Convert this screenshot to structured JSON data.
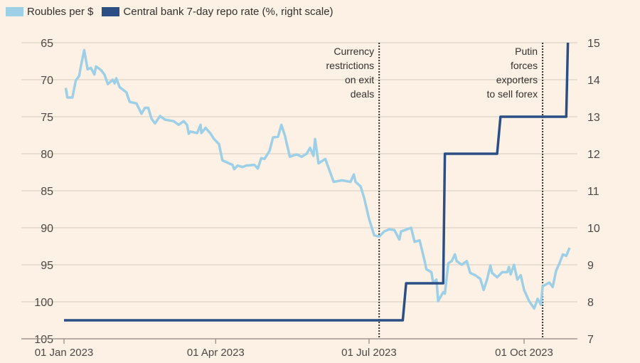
{
  "chart_data": {
    "type": "line",
    "title": "",
    "legend_placement": "top-left",
    "legend": [
      "Roubles per $",
      "Central bank 7-day repo rate (%, right scale)"
    ],
    "x_axis": {
      "type": "date",
      "start": "2023-01-01",
      "end": "2023-10-31",
      "ticks": [
        {
          "day": 0,
          "label": "01 Jan 2023"
        },
        {
          "day": 90,
          "label": "01 Apr 2023"
        },
        {
          "day": 181,
          "label": "01 Jul 2023"
        },
        {
          "day": 273,
          "label": "01 Oct 2023"
        }
      ]
    },
    "y_left": {
      "label": "Roubles per $",
      "range": [
        65,
        105
      ],
      "inverted": true,
      "ticks": [
        "65",
        "70",
        "75",
        "80",
        "85",
        "90",
        "95",
        "100",
        "105"
      ]
    },
    "y_right": {
      "label": "%",
      "range": [
        7,
        15
      ],
      "ticks": [
        "15",
        "14",
        "13",
        "12",
        "11",
        "10",
        "9",
        "8",
        "7"
      ]
    },
    "grid": true,
    "colors": {
      "roubles": "#9dcfe6",
      "repo": "#2b4f84",
      "background": "#fdf1e5",
      "grid": "#dcd2c8",
      "annotation_line": "#33302e"
    },
    "series": [
      {
        "name": "Roubles per $",
        "axis": "left",
        "points": [
          [
            1,
            71.1
          ],
          [
            2,
            72.4
          ],
          [
            5,
            72.4
          ],
          [
            7,
            70.1
          ],
          [
            9,
            69.5
          ],
          [
            10,
            68.2
          ],
          [
            12,
            66.0
          ],
          [
            14,
            68.6
          ],
          [
            16,
            68.4
          ],
          [
            18,
            69.3
          ],
          [
            19,
            68.2
          ],
          [
            22,
            68.7
          ],
          [
            24,
            69.3
          ],
          [
            26,
            70.6
          ],
          [
            29,
            70.0
          ],
          [
            30,
            70.5
          ],
          [
            31,
            69.8
          ],
          [
            33,
            71.0
          ],
          [
            37,
            71.7
          ],
          [
            39,
            73.0
          ],
          [
            43,
            73.2
          ],
          [
            46,
            74.6
          ],
          [
            48,
            73.8
          ],
          [
            50,
            73.8
          ],
          [
            52,
            75.3
          ],
          [
            54,
            75.9
          ],
          [
            57,
            74.9
          ],
          [
            60,
            75.4
          ],
          [
            65,
            75.6
          ],
          [
            68,
            76.1
          ],
          [
            71,
            75.6
          ],
          [
            73,
            76.1
          ],
          [
            74,
            77.3
          ],
          [
            75,
            77.0
          ],
          [
            79,
            77.2
          ],
          [
            81,
            76.1
          ],
          [
            81.5,
            77.2
          ],
          [
            84,
            76.5
          ],
          [
            87,
            77.3
          ],
          [
            89,
            78.0
          ],
          [
            92,
            78.7
          ],
          [
            94,
            80.9
          ],
          [
            97,
            81.2
          ],
          [
            100,
            81.5
          ],
          [
            101,
            82.1
          ],
          [
            103,
            81.6
          ],
          [
            106,
            81.8
          ],
          [
            108,
            81.6
          ],
          [
            113,
            81.5
          ],
          [
            115,
            82.0
          ],
          [
            117,
            80.6
          ],
          [
            119,
            80.7
          ],
          [
            122,
            79.6
          ],
          [
            124,
            77.8
          ],
          [
            127,
            77.7
          ],
          [
            129,
            76.1
          ],
          [
            131,
            77.5
          ],
          [
            134,
            80.4
          ],
          [
            138,
            80.1
          ],
          [
            141,
            80.4
          ],
          [
            144,
            80.0
          ],
          [
            146,
            79.2
          ],
          [
            148,
            80.3
          ],
          [
            149,
            78.0
          ],
          [
            151,
            81.3
          ],
          [
            155,
            80.7
          ],
          [
            156,
            81.3
          ],
          [
            160,
            83.8
          ],
          [
            165,
            83.6
          ],
          [
            170,
            83.8
          ],
          [
            172,
            82.8
          ],
          [
            173,
            83.8
          ],
          [
            176,
            84.4
          ],
          [
            178,
            85.9
          ],
          [
            181,
            88.8
          ],
          [
            184,
            91.0
          ],
          [
            187,
            91.2
          ],
          [
            190,
            90.5
          ],
          [
            193,
            90.2
          ],
          [
            196,
            90.3
          ],
          [
            199,
            91.6
          ],
          [
            200,
            90.5
          ],
          [
            206,
            90.0
          ],
          [
            208,
            91.9
          ],
          [
            211,
            91.7
          ],
          [
            214,
            94.5
          ],
          [
            215,
            95.6
          ],
          [
            218,
            96.0
          ],
          [
            219,
            97.4
          ],
          [
            221,
            97.0
          ],
          [
            222,
            99.9
          ],
          [
            225,
            98.7
          ],
          [
            226,
            98.9
          ],
          [
            228,
            94.8
          ],
          [
            230,
            94.5
          ],
          [
            232,
            93.6
          ],
          [
            233,
            94.5
          ],
          [
            236,
            95.0
          ],
          [
            239,
            94.5
          ],
          [
            241,
            96.1
          ],
          [
            244,
            96.4
          ],
          [
            247,
            96.9
          ],
          [
            249,
            98.4
          ],
          [
            251,
            97.0
          ],
          [
            253,
            95.1
          ],
          [
            254,
            96.1
          ],
          [
            257,
            96.7
          ],
          [
            260,
            96.0
          ],
          [
            263,
            96.0
          ],
          [
            264,
            95.3
          ],
          [
            265,
            96.3
          ],
          [
            267,
            95.0
          ],
          [
            269,
            97.0
          ],
          [
            271,
            96.4
          ],
          [
            273,
            98.4
          ],
          [
            276,
            99.9
          ],
          [
            279,
            100.9
          ],
          [
            281,
            99.6
          ],
          [
            283,
            100.4
          ],
          [
            284,
            97.9
          ],
          [
            288,
            97.4
          ],
          [
            290,
            98.0
          ],
          [
            292,
            95.8
          ],
          [
            294,
            94.8
          ],
          [
            296,
            93.6
          ],
          [
            298,
            93.8
          ],
          [
            300,
            92.7
          ]
        ]
      },
      {
        "name": "Central bank 7-day repo rate (%, right scale)",
        "axis": "right",
        "step": true,
        "points": [
          [
            0,
            7.5
          ],
          [
            201,
            7.5
          ],
          [
            203,
            8.5
          ],
          [
            225,
            8.5
          ],
          [
            226,
            12
          ],
          [
            257,
            12
          ],
          [
            259,
            13
          ],
          [
            298,
            13
          ],
          [
            299,
            15
          ]
        ]
      }
    ],
    "annotations": [
      {
        "day": 187,
        "lines": [
          "Currency",
          "restrictions",
          "on exit",
          "deals"
        ]
      },
      {
        "day": 284,
        "lines": [
          "Putin",
          "forces",
          "exporters",
          "to sell forex"
        ]
      }
    ]
  }
}
